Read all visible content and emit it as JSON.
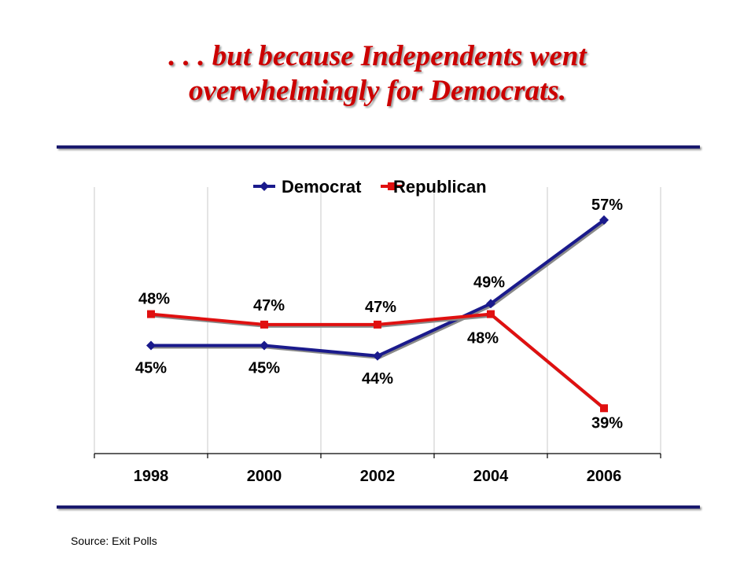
{
  "slide": {
    "title_line1": ". . . but because Independents went",
    "title_line2": "overwhelmingly for Democrats.",
    "source": "Source:  Exit Polls"
  },
  "colors": {
    "democrat": "#1a1a8c",
    "republican": "#e01010",
    "title": "#cc0000",
    "rule": "#1a1a6e"
  },
  "chart_data": {
    "type": "line",
    "categories": [
      "1998",
      "2000",
      "2002",
      "2004",
      "2006"
    ],
    "series": [
      {
        "name": "Democrat",
        "values": [
          45,
          45,
          44,
          49,
          57
        ],
        "labels": [
          "45%",
          "45%",
          "44%",
          "49%",
          "57%"
        ],
        "color": "#1a1a8c"
      },
      {
        "name": "Republican",
        "values": [
          48,
          47,
          47,
          48,
          39
        ],
        "labels": [
          "48%",
          "47%",
          "47%",
          "48%",
          "39%"
        ],
        "color": "#e01010"
      }
    ],
    "legend": "top",
    "grid": "vertical"
  }
}
